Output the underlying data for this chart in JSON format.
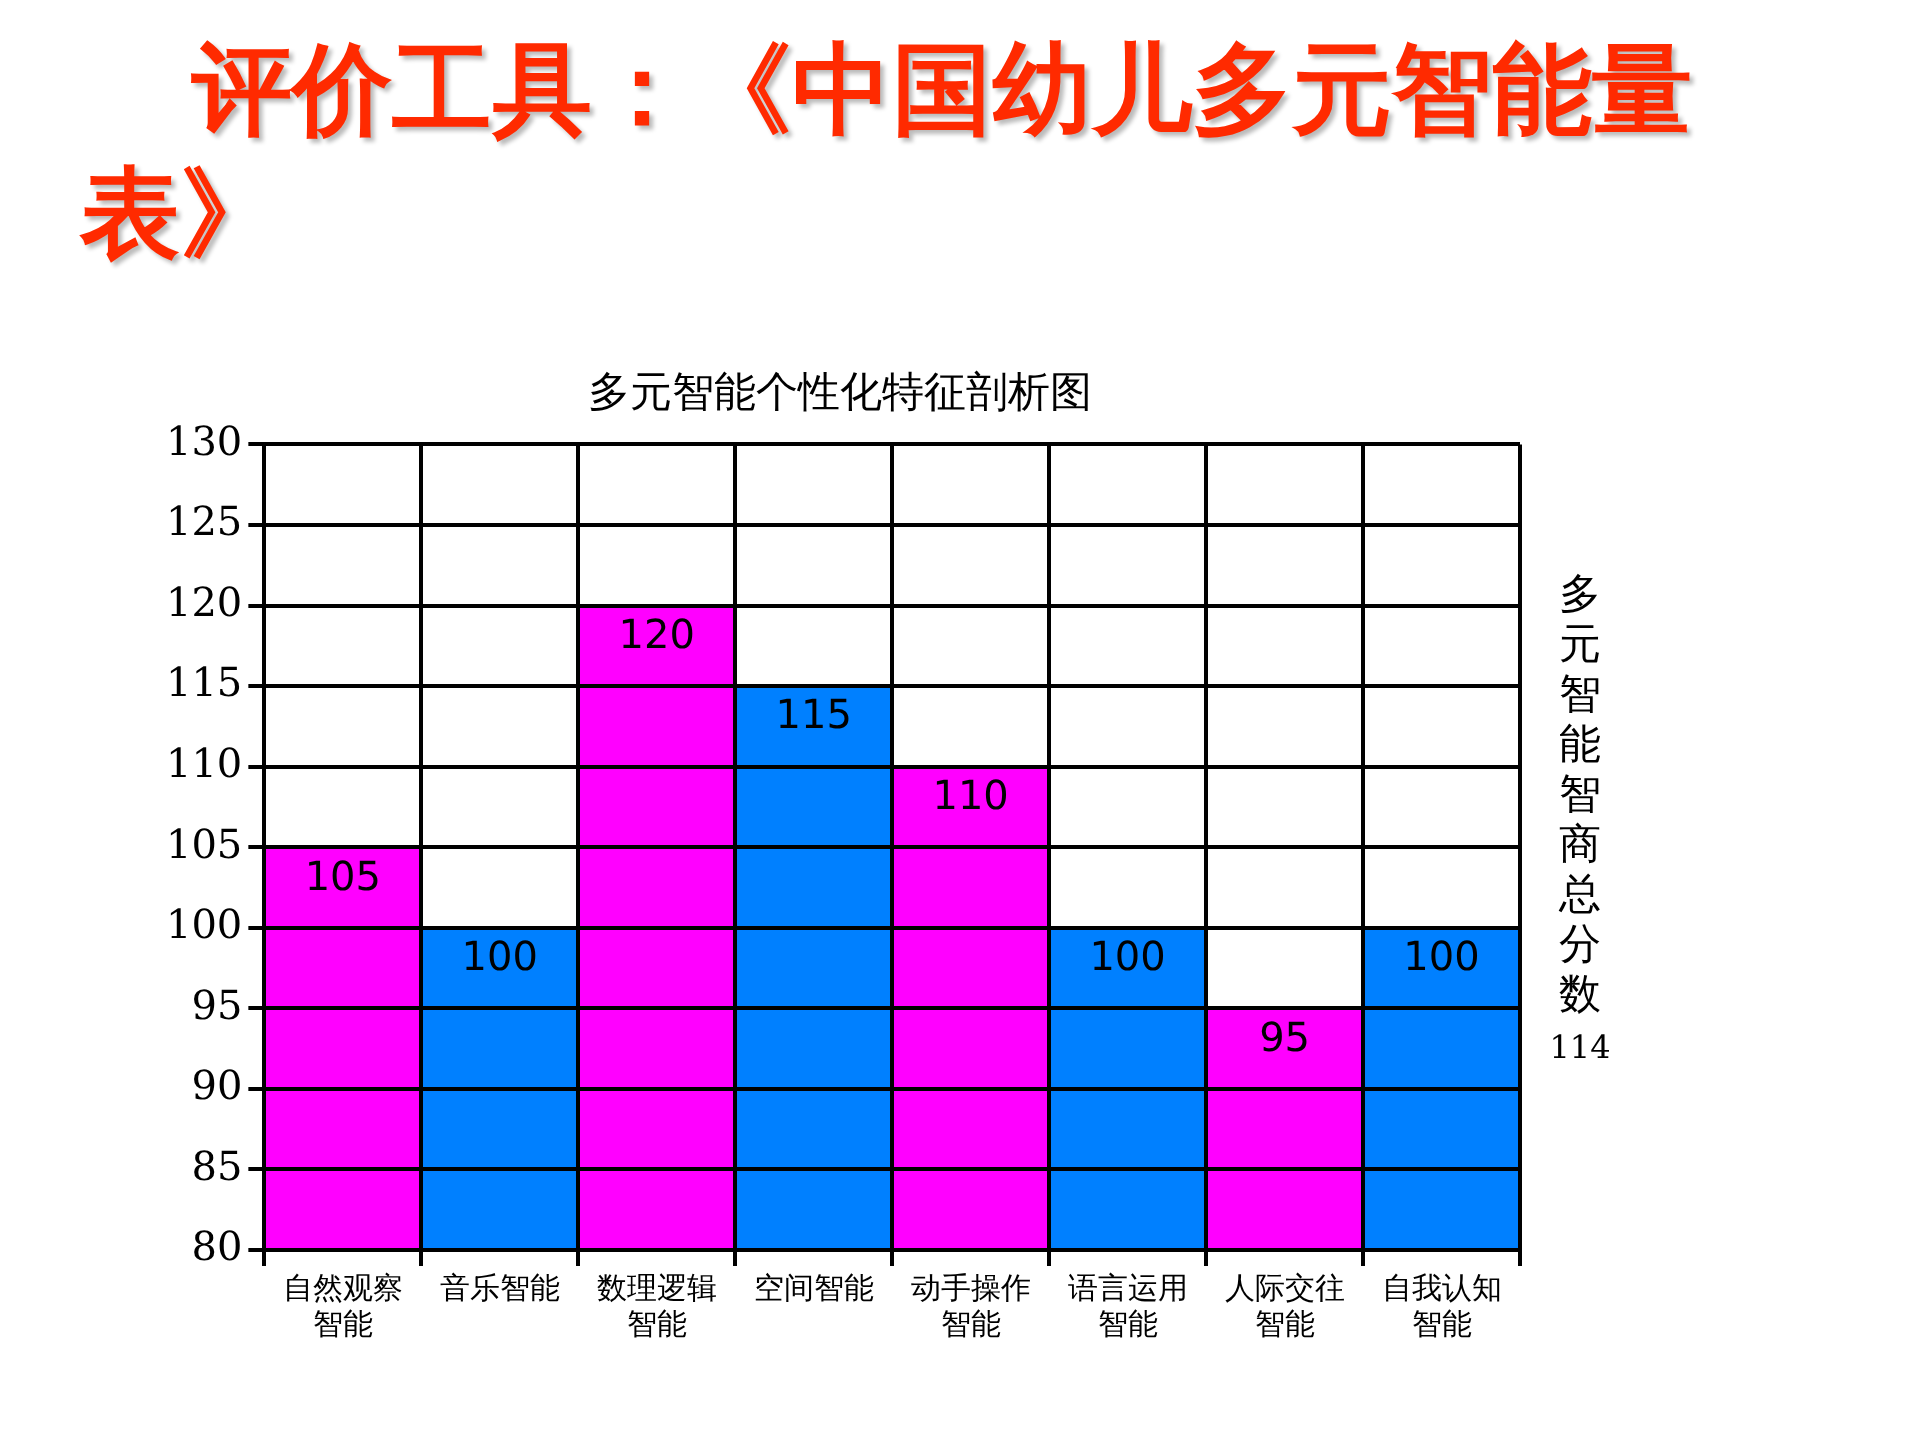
{
  "chart_data": {
    "type": "bar",
    "title": "评价工具：《中国幼儿多元智能量表》",
    "subtitle": "多元智能个性化特征剖析图",
    "categories": [
      "自然观察智能",
      "音乐智能",
      "数理逻辑智能",
      "空间智能",
      "动手操作智能",
      "语言运用智能",
      "人际交往智能",
      "自我认知智能"
    ],
    "values": [
      105,
      100,
      120,
      115,
      110,
      100,
      95,
      100
    ],
    "colors": [
      "#ff00ff",
      "#0080ff",
      "#ff00ff",
      "#0080ff",
      "#ff00ff",
      "#0080ff",
      "#ff00ff",
      "#0080ff"
    ],
    "ylim": [
      80,
      130
    ],
    "yticks": [
      80,
      85,
      90,
      95,
      100,
      105,
      110,
      115,
      120,
      125,
      130
    ],
    "grid": true,
    "legend": false,
    "data_labels": true,
    "annotations": [
      "多元智能智商总分数",
      "114"
    ]
  }
}
